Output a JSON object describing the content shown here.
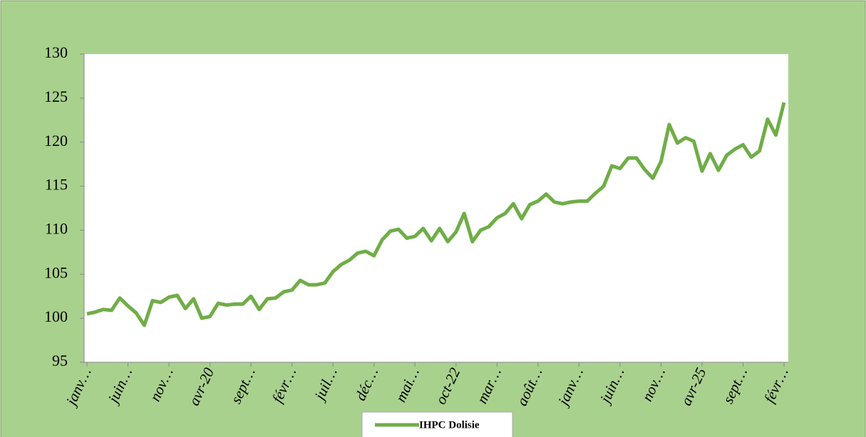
{
  "chart_data": {
    "type": "line",
    "categories": [
      "janv…",
      null,
      null,
      null,
      null,
      "juin…",
      null,
      null,
      null,
      null,
      "nov…",
      null,
      null,
      null,
      null,
      "avr-20",
      null,
      null,
      null,
      null,
      "sept…",
      null,
      null,
      null,
      null,
      "févr…",
      null,
      null,
      null,
      null,
      "juil…",
      null,
      null,
      null,
      null,
      "déc…",
      null,
      null,
      null,
      null,
      "mai…",
      null,
      null,
      null,
      null,
      "oct-22",
      null,
      null,
      null,
      null,
      "mar…",
      null,
      null,
      null,
      null,
      "août…",
      null,
      null,
      null,
      null,
      "janv…",
      null,
      null,
      null,
      null,
      "juin…",
      null,
      null,
      null,
      null,
      "nov…",
      null,
      null,
      null,
      null,
      "avr-25",
      null,
      null,
      null,
      null,
      "sept…",
      null,
      null,
      null,
      null,
      "févr…"
    ],
    "series": [
      {
        "name": "IHPC Dolisie",
        "color": "#70ad47",
        "values": [
          100.5,
          100.7,
          101.0,
          100.9,
          102.3,
          101.4,
          100.6,
          99.2,
          102.0,
          101.8,
          102.4,
          102.6,
          101.1,
          102.2,
          100.0,
          100.2,
          101.7,
          101.5,
          101.6,
          101.6,
          102.5,
          101.0,
          102.2,
          102.3,
          103.0,
          103.2,
          104.3,
          103.8,
          103.8,
          104.0,
          105.3,
          106.1,
          106.6,
          107.4,
          107.6,
          107.1,
          108.9,
          109.9,
          110.1,
          109.1,
          109.3,
          110.2,
          108.8,
          110.2,
          108.7,
          109.8,
          111.9,
          108.7,
          110.0,
          110.4,
          111.4,
          111.9,
          113.0,
          111.3,
          112.9,
          113.3,
          114.1,
          113.2,
          113.0,
          113.2,
          113.3,
          113.3,
          114.2,
          115.0,
          117.3,
          117.0,
          118.2,
          118.2,
          116.9,
          115.9,
          117.8,
          122.0,
          119.9,
          120.5,
          120.1,
          116.7,
          118.7,
          116.8,
          118.5,
          119.2,
          119.7,
          118.3,
          119.0,
          122.6,
          120.8,
          124.5
        ]
      }
    ],
    "ylim": [
      95,
      130
    ],
    "yticks": [
      95,
      100,
      105,
      110,
      115,
      120,
      125,
      130
    ],
    "legend": "bottom"
  }
}
